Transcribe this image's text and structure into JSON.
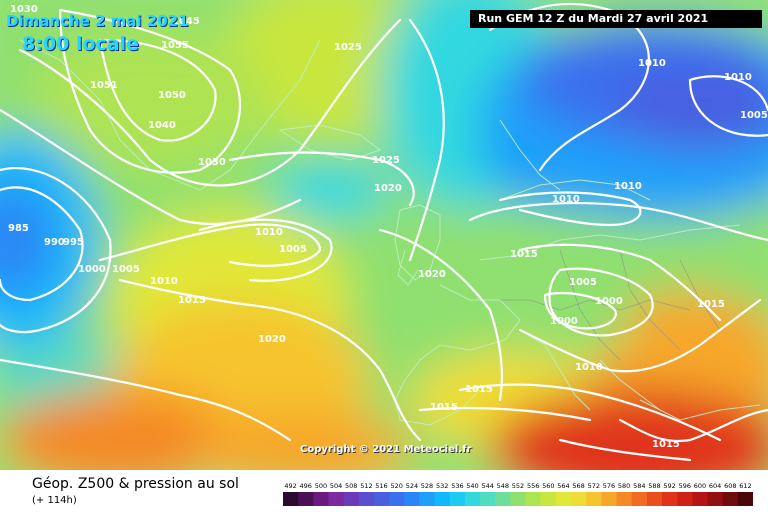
{
  "header": {
    "date_label": "Dimanche 2 mai 2021",
    "time_label": "8:00 locale",
    "run_label": "Run GEM 12 Z du Mardi 27 avril 2021"
  },
  "copyright": "Copyright © 2021 Meteociel.fr",
  "footer": {
    "title": "Géop. Z500 & pression au sol",
    "lead": "(+ 114h)"
  },
  "isobar_labels": [
    "1030",
    "1055",
    "1051",
    "1050",
    "1045",
    "1040",
    "1030",
    "1025",
    "1025",
    "1020",
    "1010",
    "1005",
    "1000",
    "1005",
    "985",
    "990",
    "995",
    "1010",
    "1015",
    "1020",
    "1020",
    "1015",
    "1010",
    "1010",
    "1010",
    "1005",
    "1005",
    "1000",
    "1000",
    "1015",
    "1010",
    "1015",
    "1015",
    "1015",
    "1010"
  ],
  "color_scale": {
    "labels": [
      "492",
      "496",
      "500",
      "504",
      "508",
      "512",
      "516",
      "520",
      "524",
      "528",
      "532",
      "536",
      "540",
      "544",
      "548",
      "552",
      "556",
      "560",
      "564",
      "568",
      "572",
      "576",
      "580",
      "584",
      "588",
      "592",
      "596",
      "600",
      "604",
      "608",
      "612"
    ],
    "colors": [
      "#2b0a2f",
      "#4a0f55",
      "#6a1a7d",
      "#7d2aa0",
      "#6b3ab8",
      "#5a4fcf",
      "#4a5fe0",
      "#3a70ee",
      "#2a86f6",
      "#1ea0fa",
      "#12b8fb",
      "#1ccbf3",
      "#33d8df",
      "#4fdcc0",
      "#6fde9a",
      "#8fe070",
      "#aee352",
      "#c9e63e",
      "#e0e838",
      "#f0dc36",
      "#f6c42e",
      "#f6a72a",
      "#f48a26",
      "#ef6c22",
      "#e94f1e",
      "#e0341a",
      "#cf2216",
      "#b41414",
      "#931010",
      "#6f0c0c",
      "#4a0808"
    ]
  }
}
